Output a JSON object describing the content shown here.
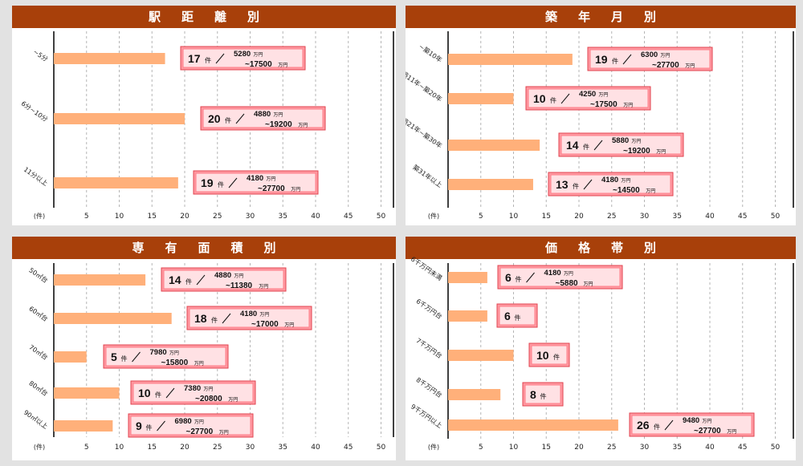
{
  "chart_data": [
    {
      "type": "bar",
      "title": "駅距離別",
      "xunit": "(件)",
      "xticks": [
        5,
        10,
        15,
        20,
        25,
        30,
        35,
        40,
        45,
        50
      ],
      "xlim": [
        0,
        50
      ],
      "categories": [
        "~5分",
        "6分~10分",
        "11分以上"
      ],
      "values": [
        17,
        20,
        19
      ],
      "price_min": [
        "5280",
        "4880",
        "4180"
      ],
      "price_max": [
        "~17500",
        "~19200",
        "~27700"
      ],
      "count_unit": "件",
      "price_unit": "万円"
    },
    {
      "type": "bar",
      "title": "築年月別",
      "xunit": "(件)",
      "xticks": [
        5,
        10,
        15,
        20,
        25,
        30,
        35,
        40,
        45,
        50
      ],
      "xlim": [
        0,
        50
      ],
      "categories": [
        "~築10年",
        "築11年~築20年",
        "築21年~築30年",
        "築31年以上"
      ],
      "values": [
        19,
        10,
        14,
        13
      ],
      "price_min": [
        "6300",
        "4250",
        "5880",
        "4180"
      ],
      "price_max": [
        "~27700",
        "~17500",
        "~19200",
        "~14500"
      ],
      "count_unit": "件",
      "price_unit": "万円"
    },
    {
      "type": "bar",
      "title": "専有面積別",
      "xunit": "(件)",
      "xticks": [
        5,
        10,
        15,
        20,
        25,
        30,
        35,
        40,
        45,
        50
      ],
      "xlim": [
        0,
        50
      ],
      "categories": [
        "50㎡台",
        "60㎡台",
        "70㎡台",
        "80㎡台",
        "90㎡以上"
      ],
      "values": [
        14,
        18,
        5,
        10,
        9
      ],
      "price_min": [
        "4880",
        "4180",
        "7980",
        "7380",
        "6980"
      ],
      "price_max": [
        "~11380",
        "~17000",
        "~15800",
        "~20800",
        "~27700"
      ],
      "count_unit": "件",
      "price_unit": "万円"
    },
    {
      "type": "bar",
      "title": "価格帯別",
      "xunit": "(件)",
      "xticks": [
        5,
        10,
        15,
        20,
        25,
        30,
        35,
        40,
        45,
        50
      ],
      "xlim": [
        0,
        50
      ],
      "categories": [
        "6千万円未満",
        "6千万円台",
        "7千万円台",
        "8千万円台",
        "9千万円以上"
      ],
      "values": [
        6,
        6,
        10,
        8,
        26
      ],
      "price_min": [
        "4180",
        "",
        "",
        "",
        "9480"
      ],
      "price_max": [
        "~5880",
        "",
        "",
        "",
        "~27700"
      ],
      "count_unit": "件",
      "price_unit": "万円"
    }
  ]
}
